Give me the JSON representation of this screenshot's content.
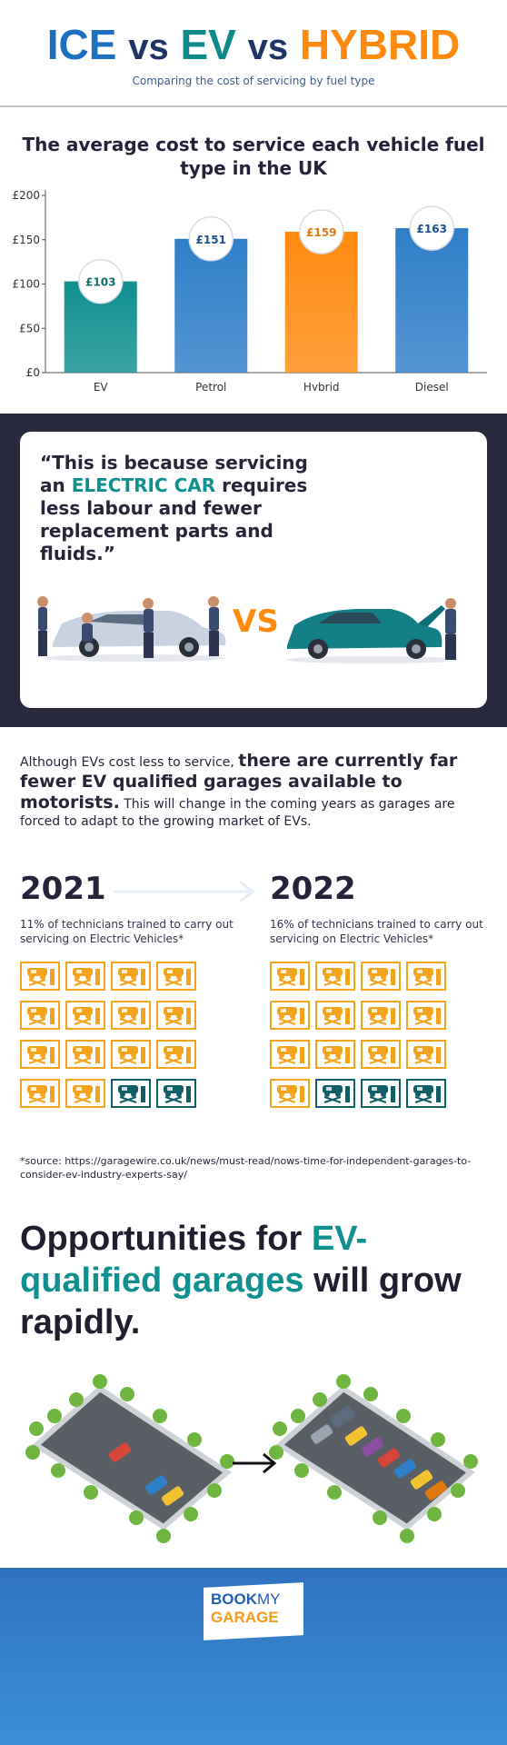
{
  "header": {
    "title_ice": "ICE",
    "title_vs1": "vs",
    "title_ev": "EV",
    "title_vs2": "vs",
    "title_hybrid": "HYBRID",
    "subtitle": "Comparing the cost of servicing by fuel type"
  },
  "chart_data": {
    "type": "bar",
    "title": "The average cost to service each vehicle fuel type in the UK",
    "categories": [
      "EV",
      "Petrol",
      "Hybrid",
      "Diesel"
    ],
    "values": [
      103,
      151,
      159,
      163
    ],
    "data_labels": [
      "£103",
      "£151",
      "£159",
      "£163"
    ],
    "yticks": [
      "£0",
      "£50",
      "£100",
      "£150",
      "£200"
    ],
    "ylim": [
      0,
      200
    ],
    "xlabel": "",
    "ylabel": "",
    "grid": false,
    "colors": [
      "#0f8f8f",
      "#2f7ec8",
      "#ff8a10",
      "#2f7ec8"
    ],
    "label_colors": [
      "#0f6f6f",
      "#1f4f8f",
      "#e07a10",
      "#1f4f8f"
    ]
  },
  "quote": {
    "open": "“This is because servicing an ",
    "highlight": "ELECTRIC CAR",
    "close": " requires less labour and fewer replacement parts and fluids.”",
    "vs": "VS"
  },
  "paragraph": {
    "part1": "Although EVs cost less to service, ",
    "part2_bold": "there are currently far fewer EV qualified garages available to motorists.",
    "part3": " This will change in the coming years as garages are forced to adapt to the growing market of EVs."
  },
  "stats": {
    "year1": "2021",
    "desc1": "11% of technicians trained to carry out servicing on Electric Vehicles*",
    "ev_tiles1": 2,
    "year2": "2022",
    "desc2": "16% of technicians trained to carry out servicing on Electric Vehicles*",
    "ev_tiles2": 3,
    "tiles_total": 16
  },
  "source": "*source: https://garagewire.co.uk/news/must-read/nows-time-for-independent-garages-to-consider-ev-industry-experts-say/",
  "opportunity": {
    "part1": "Opportunities for ",
    "highlight": "EV-qualified garages",
    "part2": " will grow rapidly."
  },
  "logo": {
    "book": "BOOK",
    "my": "MY",
    "garage": "GARAGE"
  },
  "colors": {
    "ev": "#0f8f8f",
    "petrol_diesel": "#2f7ec8",
    "hybrid": "#ff8a10",
    "dark": "#2a2a3e",
    "tile_orange": "#f4a31c",
    "tile_ev": "#115f66"
  }
}
